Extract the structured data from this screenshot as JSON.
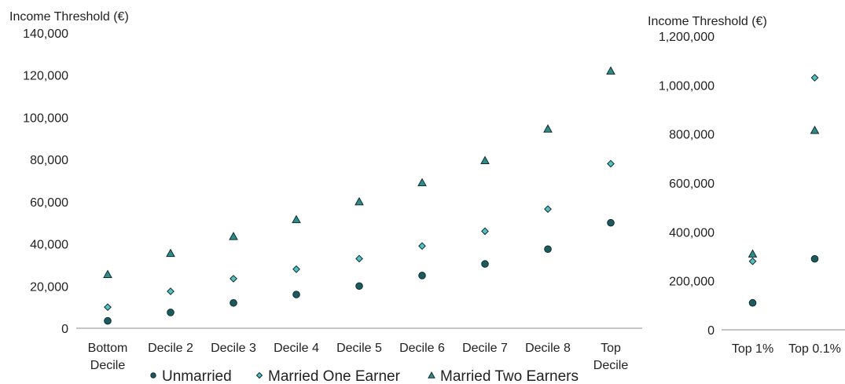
{
  "chart_data": [
    {
      "type": "scatter",
      "ylabel": "Income Threshold (€)",
      "categories": [
        "Bottom Decile",
        "Decile 2",
        "Decile 3",
        "Decile 4",
        "Decile 5",
        "Decile 6",
        "Decile 7",
        "Decile 8",
        "Top Decile"
      ],
      "category_lines": [
        [
          "Bottom",
          "Decile"
        ],
        [
          "Decile 2"
        ],
        [
          "Decile 3"
        ],
        [
          "Decile 4"
        ],
        [
          "Decile 5"
        ],
        [
          "Decile 6"
        ],
        [
          "Decile 7"
        ],
        [
          "Decile 8"
        ],
        [
          "Top",
          "Decile"
        ]
      ],
      "ylim": [
        0,
        140000
      ],
      "yticks": [
        0,
        20000,
        40000,
        60000,
        80000,
        100000,
        120000,
        140000
      ],
      "ytick_labels": [
        "0",
        "20,000",
        "40,000",
        "60,000",
        "80,000",
        "100,000",
        "120,000",
        "140,000"
      ],
      "grid": false,
      "series": [
        {
          "name": "Unmarried",
          "marker": "circle",
          "values": [
            3500,
            7500,
            12000,
            16000,
            20000,
            25000,
            30500,
            37500,
            50000
          ]
        },
        {
          "name": "Married One Earner",
          "marker": "diamond",
          "values": [
            10000,
            17500,
            23500,
            28000,
            33000,
            39000,
            46000,
            56500,
            78000
          ]
        },
        {
          "name": "Married Two Earners",
          "marker": "triangle",
          "values": [
            25500,
            35500,
            43500,
            51500,
            60000,
            69000,
            79500,
            94500,
            122000
          ]
        }
      ]
    },
    {
      "type": "scatter",
      "ylabel": "Income Threshold (€)",
      "categories": [
        "Top 1%",
        "Top 0.1%"
      ],
      "category_lines": [
        [
          "Top 1%"
        ],
        [
          "Top 0.1%"
        ]
      ],
      "ylim": [
        0,
        1200000
      ],
      "yticks": [
        0,
        200000,
        400000,
        600000,
        800000,
        1000000,
        1200000
      ],
      "ytick_labels": [
        "0",
        "200,000",
        "400,000",
        "600,000",
        "800,000",
        "1,000,000",
        "1,200,000"
      ],
      "grid": false,
      "series": [
        {
          "name": "Unmarried",
          "marker": "circle",
          "values": [
            110000,
            290000
          ]
        },
        {
          "name": "Married One Earner",
          "marker": "diamond",
          "values": [
            280000,
            1030000
          ]
        },
        {
          "name": "Married Two Earners",
          "marker": "triangle",
          "values": [
            310000,
            815000
          ]
        }
      ]
    }
  ],
  "legend": {
    "placement": "bottom",
    "items": [
      {
        "label": "Unmarried",
        "marker": "circle"
      },
      {
        "label": "Married One Earner",
        "marker": "diamond"
      },
      {
        "label": "Married Two Earners",
        "marker": "triangle"
      }
    ]
  },
  "colors": {
    "circle_fill": "#1c5a5e",
    "diamond_fill": "#54c0c4",
    "triangle_fill": "#2f8a88",
    "marker_stroke": "#0e2e30",
    "axis": "#8c8c8c",
    "text": "#222222"
  }
}
